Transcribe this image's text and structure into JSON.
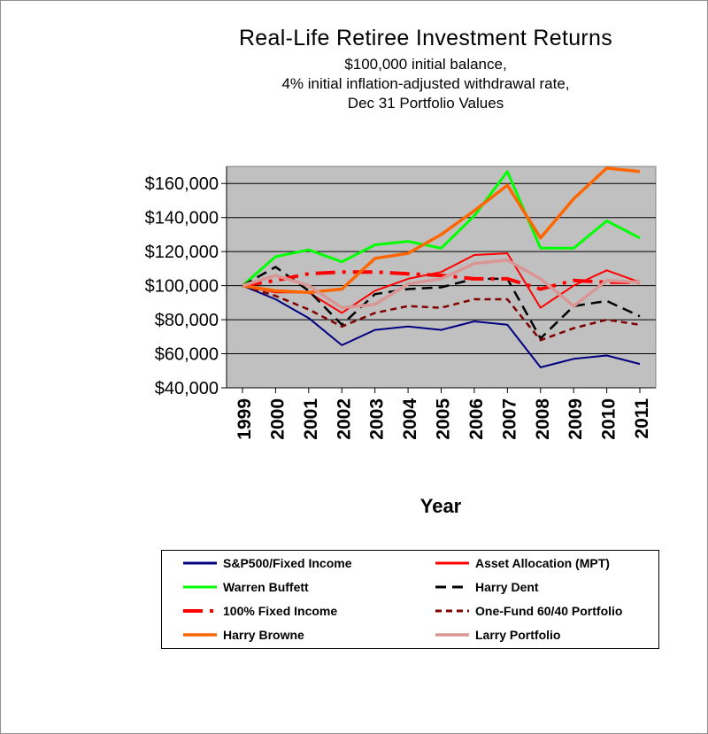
{
  "title": "Real-Life Retiree Investment Returns",
  "subtitle_lines": [
    "$100,000 initial balance,",
    "4% initial inflation-adjusted withdrawal rate,",
    "Dec 31 Portfolio Values"
  ],
  "chart_data": {
    "type": "line",
    "title": "Real-Life Retiree Investment Returns",
    "xlabel": "Year",
    "ylabel": "",
    "x": [
      "1999",
      "2000",
      "2001",
      "2002",
      "2003",
      "2004",
      "2005",
      "2006",
      "2007",
      "2008",
      "2009",
      "2010",
      "2011"
    ],
    "ylim": [
      40000,
      170000
    ],
    "yticks": [
      40000,
      60000,
      80000,
      100000,
      120000,
      140000,
      160000
    ],
    "ytick_labels": [
      "$40,000",
      "$60,000",
      "$80,000",
      "$100,000",
      "$120,000",
      "$140,000",
      "$160,000"
    ],
    "grid": true,
    "plot_background": "#c0c0c0",
    "legend_position": "bottom",
    "series": [
      {
        "name": "S&P500/Fixed Income",
        "color": "#000080",
        "style": "solid",
        "width": 2,
        "values": [
          100000,
          92000,
          81000,
          65000,
          74000,
          76000,
          74000,
          79000,
          77000,
          52000,
          57000,
          59000,
          54000
        ]
      },
      {
        "name": "Asset Allocation (MPT)",
        "color": "#ff0000",
        "style": "solid",
        "width": 2,
        "values": [
          100000,
          96000,
          96000,
          84000,
          97000,
          104000,
          108000,
          118000,
          119000,
          87000,
          100000,
          109000,
          102000
        ]
      },
      {
        "name": "Warren Buffett",
        "color": "#00ff00",
        "style": "solid",
        "width": 3,
        "values": [
          100000,
          117000,
          121000,
          114000,
          124000,
          126000,
          122000,
          141000,
          167000,
          122000,
          122000,
          138000,
          128000
        ]
      },
      {
        "name": "Harry Dent",
        "color": "#000000",
        "style": "dash",
        "width": 2.5,
        "values": [
          100000,
          111000,
          97000,
          77000,
          95000,
          98000,
          99000,
          104000,
          104000,
          69000,
          88000,
          91000,
          82000
        ]
      },
      {
        "name": "100% Fixed Income",
        "color": "#ff0000",
        "style": "dashdot",
        "width": 4,
        "values": [
          100000,
          103000,
          107000,
          108000,
          108000,
          107000,
          106000,
          104000,
          104000,
          98000,
          103000,
          102000,
          102000
        ]
      },
      {
        "name": "One-Fund 60/40 Portfolio",
        "color": "#800000",
        "style": "shortdash",
        "width": 2.5,
        "values": [
          100000,
          94000,
          86000,
          76000,
          84000,
          88000,
          87000,
          92000,
          92000,
          68000,
          75000,
          80000,
          77000
        ]
      },
      {
        "name": "Harry Browne",
        "color": "#ff6600",
        "style": "solid",
        "width": 3.5,
        "values": [
          100000,
          97000,
          96000,
          98000,
          116000,
          119000,
          130000,
          144000,
          159000,
          128000,
          151000,
          169000,
          167000
        ]
      },
      {
        "name": "Larry Portfolio",
        "color": "#d99694",
        "style": "solid",
        "width": 3.5,
        "values": [
          100000,
          106000,
          100000,
          87000,
          89000,
          101000,
          104000,
          113000,
          115000,
          104000,
          88000,
          103000,
          102000
        ]
      }
    ]
  }
}
